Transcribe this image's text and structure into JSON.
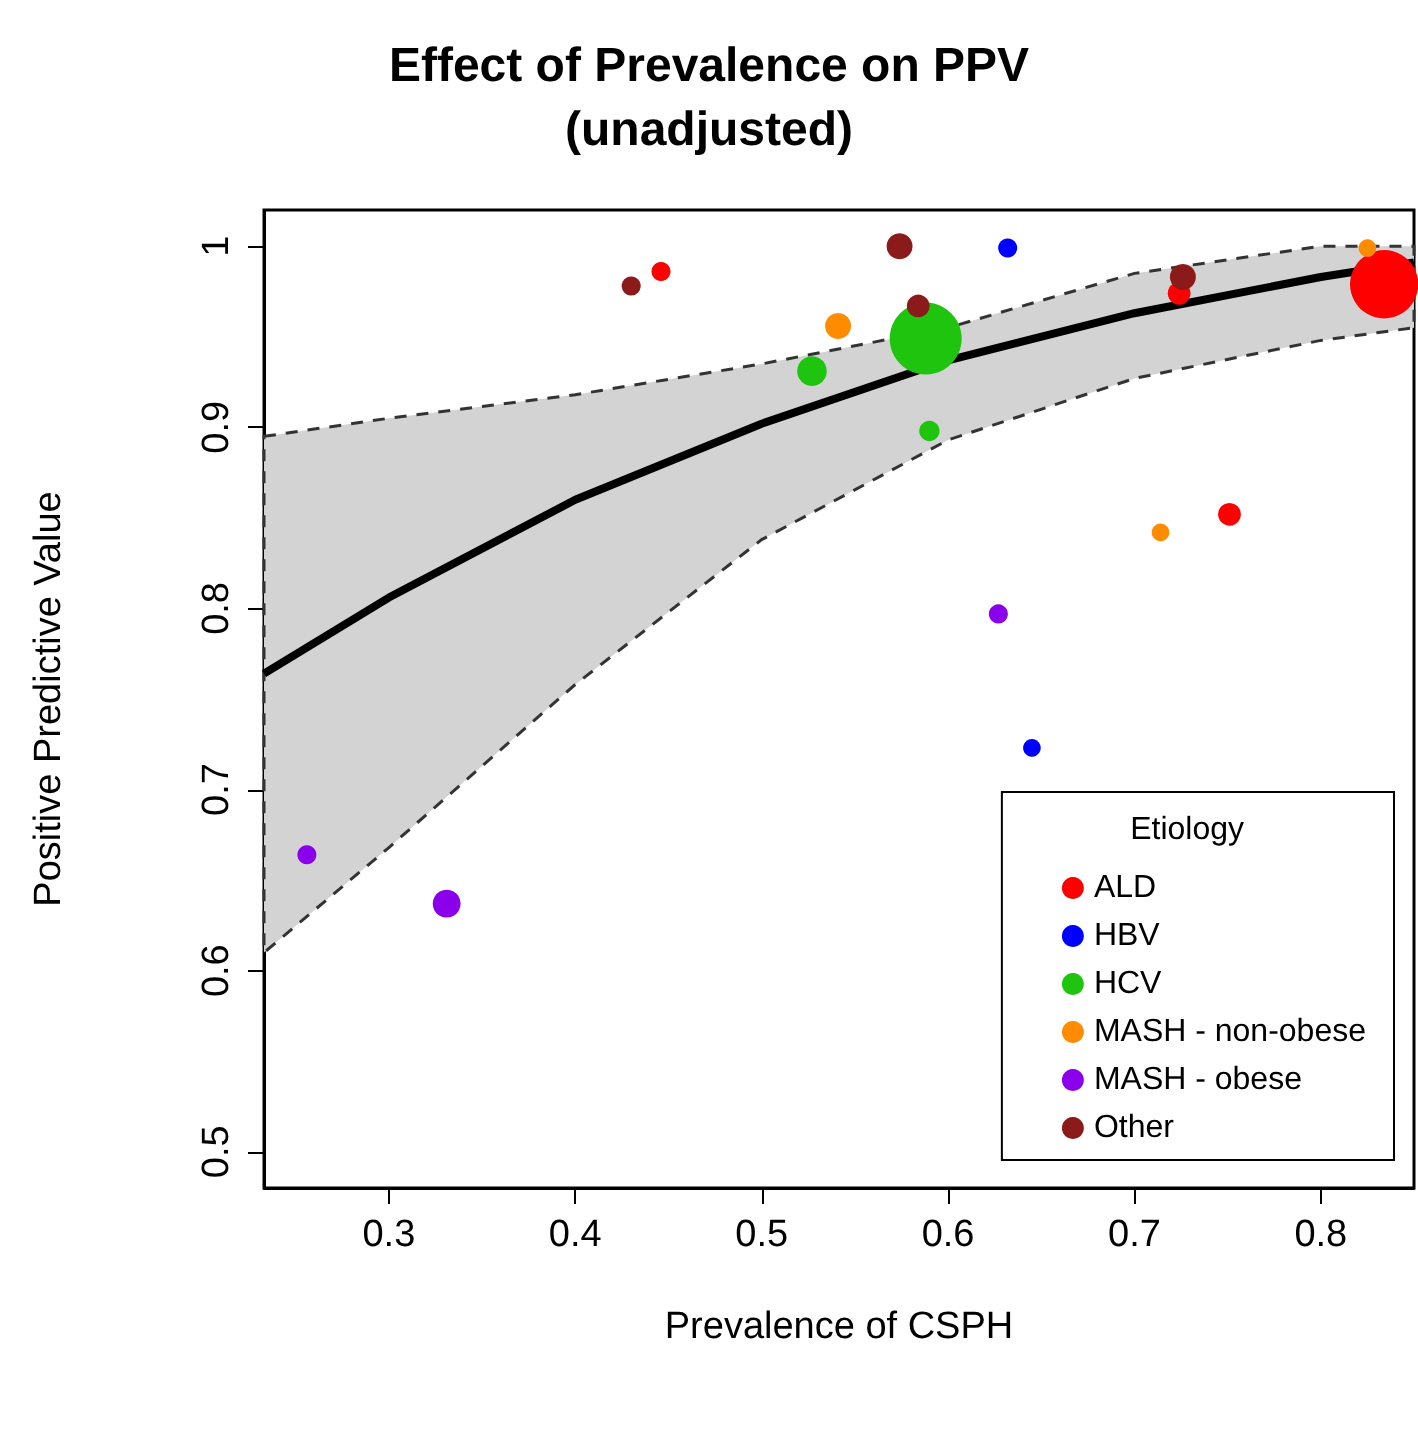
{
  "chart_data": {
    "type": "bubble",
    "title": "Effect of Prevalence on PPV\n(unadjusted)",
    "xlabel": "Prevalence of CSPH",
    "ylabel": "Positive Predictive Value",
    "legend_title": "Etiology",
    "legend": "bottom right",
    "grid": false,
    "xlim": [
      0.233,
      0.85
    ],
    "ylim": [
      0.48,
      1.02
    ],
    "xticks": [
      0.3,
      0.4,
      0.5,
      0.6,
      0.7,
      0.8
    ],
    "yticks": [
      0.5,
      0.6,
      0.7,
      0.8,
      0.9,
      1
    ],
    "series": [
      {
        "type": "line",
        "color": "#000000",
        "x": [
          0.233,
          0.3,
          0.4,
          0.5,
          0.6,
          0.7,
          0.8,
          0.85
        ],
        "values": [
          0.764,
          0.806,
          0.86,
          0.902,
          0.937,
          0.963,
          0.983,
          0.991
        ],
        "lower": [
          0.61,
          0.668,
          0.758,
          0.838,
          0.893,
          0.927,
          0.948,
          0.955
        ],
        "upper": [
          0.895,
          0.905,
          0.918,
          0.935,
          0.955,
          0.985,
          1.0,
          1.0
        ]
      },
      {
        "name": "ALD",
        "color": "#ff0000",
        "x": [
          0.446,
          0.724,
          0.751,
          0.834
        ],
        "values": [
          0.986,
          0.974,
          0.852,
          0.979
        ],
        "sizes": [
          0.07,
          0.1,
          0.1,
          0.9
        ]
      },
      {
        "name": "HBV",
        "color": "#0000ff",
        "x": [
          0.632,
          0.645
        ],
        "values": [
          0.999,
          0.723
        ],
        "sizes": [
          0.07,
          0.06
        ]
      },
      {
        "name": "HCV",
        "color": "#1fc40f",
        "x": [
          0.527,
          0.588,
          0.59
        ],
        "values": [
          0.931,
          0.949,
          0.898
        ],
        "sizes": [
          0.17,
          1,
          0.08
        ]
      },
      {
        "name": "MASH - non-obese",
        "color": "#ff8c00",
        "x": [
          0.541,
          0.714,
          0.825
        ],
        "values": [
          0.956,
          0.842,
          0.999
        ],
        "sizes": [
          0.13,
          0.06,
          0.06
        ]
      },
      {
        "name": "MASH - obese",
        "color": "#8b00ea",
        "x": [
          0.256,
          0.331,
          0.627
        ],
        "values": [
          0.664,
          0.637,
          0.797
        ],
        "sizes": [
          0.07,
          0.15,
          0.07
        ]
      },
      {
        "name": "Other",
        "color": "#8b1a1a",
        "x": [
          0.43,
          0.574,
          0.584,
          0.726
        ],
        "values": [
          0.978,
          1.0,
          0.967,
          0.983
        ],
        "sizes": [
          0.07,
          0.13,
          0.1,
          0.13
        ]
      }
    ]
  }
}
